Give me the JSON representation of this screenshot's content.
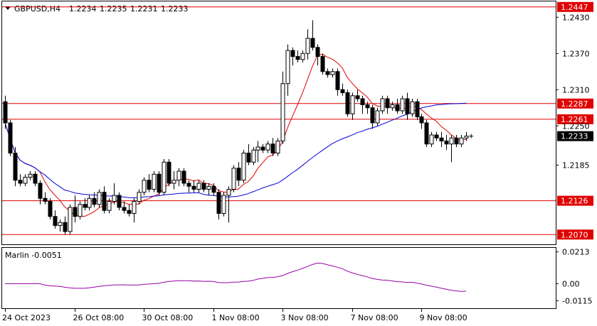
{
  "chart_data": {
    "type": "candlestick",
    "symbol_label": "GBPUSD,H4",
    "ohlc_header": [
      "1.2234",
      "1.2235",
      "1.2231",
      "1.2233"
    ],
    "price_range": [
      1.2055,
      1.2455
    ],
    "price_ticks": [
      "1.2430",
      "1.2370",
      "1.2310",
      "1.2250",
      "1.2185"
    ],
    "horizontal_levels": [
      {
        "value": 1.2447,
        "label": "1.2447"
      },
      {
        "value": 1.2287,
        "label": "1.2287"
      },
      {
        "value": 1.2261,
        "label": "1.2261"
      },
      {
        "value": 1.2126,
        "label": "1.2126"
      },
      {
        "value": 1.207,
        "label": "1.2070"
      }
    ],
    "current_price": {
      "value": 1.2233,
      "label": "1.2233"
    },
    "time_labels": [
      "24 Oct 2023",
      "26 Oct 08:00",
      "30 Oct 08:00",
      "1 Nov 08:00",
      "3 Nov 08:00",
      "7 Nov 08:00",
      "9 Nov 08:00"
    ],
    "candles": [
      [
        1.229,
        1.23,
        1.2245,
        1.2255
      ],
      [
        1.2255,
        1.226,
        1.22,
        1.2205
      ],
      [
        1.2205,
        1.2215,
        1.215,
        1.216
      ],
      [
        1.216,
        1.217,
        1.215,
        1.2155
      ],
      [
        1.2155,
        1.217,
        1.215,
        1.2165
      ],
      [
        1.2165,
        1.2175,
        1.216,
        1.217
      ],
      [
        1.217,
        1.2175,
        1.215,
        1.2155
      ],
      [
        1.2155,
        1.216,
        1.212,
        1.213
      ],
      [
        1.213,
        1.214,
        1.212,
        1.2125
      ],
      [
        1.2125,
        1.213,
        1.2095,
        1.21
      ],
      [
        1.21,
        1.211,
        1.208,
        1.2085
      ],
      [
        1.2085,
        1.2095,
        1.2075,
        1.209
      ],
      [
        1.209,
        1.21,
        1.207,
        1.2075
      ],
      [
        1.2075,
        1.212,
        1.207,
        1.2115
      ],
      [
        1.2115,
        1.2135,
        1.209,
        1.21
      ],
      [
        1.21,
        1.2125,
        1.2095,
        1.212
      ],
      [
        1.212,
        1.213,
        1.211,
        1.2115
      ],
      [
        1.2115,
        1.2135,
        1.211,
        1.213
      ],
      [
        1.213,
        1.214,
        1.2115,
        1.212
      ],
      [
        1.212,
        1.2145,
        1.2115,
        1.214
      ],
      [
        1.214,
        1.215,
        1.2105,
        1.211
      ],
      [
        1.211,
        1.213,
        1.2105,
        1.2125
      ],
      [
        1.2125,
        1.2155,
        1.212,
        1.2135
      ],
      [
        1.2135,
        1.214,
        1.211,
        1.2115
      ],
      [
        1.2115,
        1.2125,
        1.2105,
        1.211
      ],
      [
        1.211,
        1.212,
        1.21,
        1.2105
      ],
      [
        1.2105,
        1.213,
        1.209,
        1.2125
      ],
      [
        1.2125,
        1.2145,
        1.212,
        1.214
      ],
      [
        1.214,
        1.2165,
        1.2135,
        1.216
      ],
      [
        1.216,
        1.217,
        1.214,
        1.2145
      ],
      [
        1.2145,
        1.2175,
        1.214,
        1.217
      ],
      [
        1.217,
        1.2175,
        1.2135,
        1.214
      ],
      [
        1.214,
        1.2195,
        1.2135,
        1.219
      ],
      [
        1.219,
        1.2195,
        1.215,
        1.2155
      ],
      [
        1.2155,
        1.2175,
        1.2145,
        1.216
      ],
      [
        1.216,
        1.218,
        1.215,
        1.2175
      ],
      [
        1.2175,
        1.218,
        1.215,
        1.2155
      ],
      [
        1.2155,
        1.216,
        1.214,
        1.215
      ],
      [
        1.215,
        1.216,
        1.214,
        1.2145
      ],
      [
        1.2145,
        1.216,
        1.214,
        1.2155
      ],
      [
        1.2155,
        1.216,
        1.214,
        1.2145
      ],
      [
        1.2145,
        1.2155,
        1.2135,
        1.215
      ],
      [
        1.215,
        1.2155,
        1.2135,
        1.214
      ],
      [
        1.214,
        1.2145,
        1.2095,
        1.2105
      ],
      [
        1.2105,
        1.214,
        1.21,
        1.2135
      ],
      [
        1.2135,
        1.215,
        1.209,
        1.2145
      ],
      [
        1.2145,
        1.2185,
        1.214,
        1.218
      ],
      [
        1.218,
        1.219,
        1.215,
        1.216
      ],
      [
        1.216,
        1.221,
        1.2155,
        1.2205
      ],
      [
        1.2205,
        1.222,
        1.2185,
        1.219
      ],
      [
        1.219,
        1.2215,
        1.2185,
        1.221
      ],
      [
        1.221,
        1.2225,
        1.219,
        1.2215
      ],
      [
        1.2215,
        1.222,
        1.2205,
        1.221
      ],
      [
        1.221,
        1.2225,
        1.2205,
        1.222
      ],
      [
        1.222,
        1.223,
        1.22,
        1.2205
      ],
      [
        1.2205,
        1.223,
        1.22,
        1.2225
      ],
      [
        1.2225,
        1.234,
        1.222,
        1.232
      ],
      [
        1.232,
        1.2385,
        1.23,
        1.2375
      ],
      [
        1.2375,
        1.238,
        1.235,
        1.2365
      ],
      [
        1.2365,
        1.2375,
        1.2355,
        1.236
      ],
      [
        1.236,
        1.2375,
        1.2355,
        1.237
      ],
      [
        1.237,
        1.241,
        1.236,
        1.2395
      ],
      [
        1.2395,
        1.2425,
        1.2375,
        1.238
      ],
      [
        1.238,
        1.2385,
        1.235,
        1.2365
      ],
      [
        1.2365,
        1.237,
        1.2335,
        1.234
      ],
      [
        1.234,
        1.2345,
        1.233,
        1.2335
      ],
      [
        1.2335,
        1.2345,
        1.233,
        1.234
      ],
      [
        1.234,
        1.2345,
        1.23,
        1.231
      ],
      [
        1.231,
        1.232,
        1.23,
        1.2305
      ],
      [
        1.2305,
        1.231,
        1.2265,
        1.227
      ],
      [
        1.227,
        1.2305,
        1.226,
        1.23
      ],
      [
        1.23,
        1.231,
        1.229,
        1.2295
      ],
      [
        1.2295,
        1.23,
        1.227,
        1.2285
      ],
      [
        1.2285,
        1.229,
        1.227,
        1.228
      ],
      [
        1.228,
        1.2285,
        1.2245,
        1.2255
      ],
      [
        1.2255,
        1.228,
        1.225,
        1.2275
      ],
      [
        1.2275,
        1.23,
        1.227,
        1.2295
      ],
      [
        1.2295,
        1.23,
        1.227,
        1.228
      ],
      [
        1.228,
        1.229,
        1.2275,
        1.2285
      ],
      [
        1.2285,
        1.2295,
        1.227,
        1.2275
      ],
      [
        1.2275,
        1.23,
        1.227,
        1.2295
      ],
      [
        1.2295,
        1.2305,
        1.226,
        1.227
      ],
      [
        1.227,
        1.2295,
        1.2265,
        1.229
      ],
      [
        1.229,
        1.2295,
        1.226,
        1.2265
      ],
      [
        1.2265,
        1.227,
        1.2245,
        1.2255
      ],
      [
        1.2255,
        1.226,
        1.2215,
        1.222
      ],
      [
        1.222,
        1.224,
        1.2215,
        1.2235
      ],
      [
        1.2235,
        1.224,
        1.2225,
        1.223
      ],
      [
        1.223,
        1.224,
        1.2215,
        1.2225
      ],
      [
        1.2225,
        1.2235,
        1.221,
        1.222
      ],
      [
        1.222,
        1.2235,
        1.219,
        1.223
      ],
      [
        1.223,
        1.2235,
        1.2215,
        1.222
      ],
      [
        1.222,
        1.2235,
        1.2215,
        1.223
      ],
      [
        1.223,
        1.224,
        1.2225,
        1.2233
      ]
    ],
    "indicator": {
      "label": "Marlin -0.0051",
      "ticks": [
        "0.0213",
        "0.00",
        "-0.0115"
      ],
      "range": [
        -0.016,
        0.0235
      ]
    }
  }
}
